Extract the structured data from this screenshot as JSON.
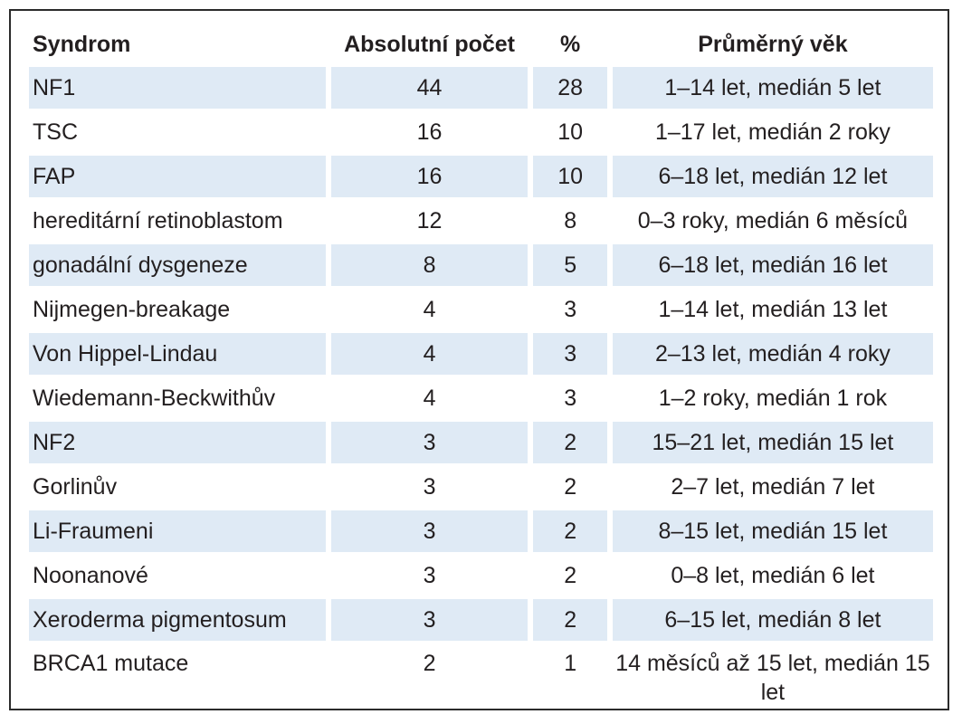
{
  "table": {
    "headers": [
      "Syndrom",
      "Absolutní počet",
      "%",
      "Průměrný věk"
    ],
    "rows": [
      [
        "NF1",
        "44",
        "28",
        "1–14 let, medián 5 let"
      ],
      [
        "TSC",
        "16",
        "10",
        "1–17 let, medián 2 roky"
      ],
      [
        "FAP",
        "16",
        "10",
        "6–18 let, medián 12 let"
      ],
      [
        "hereditární retinoblastom",
        "12",
        "8",
        "0–3 roky, medián 6 měsíců"
      ],
      [
        "gonadální dysgeneze",
        "8",
        "5",
        "6–18 let, medián 16 let"
      ],
      [
        "Nijmegen-breakage",
        "4",
        "3",
        "1–14 let, medián 13 let"
      ],
      [
        "Von Hippel-Lindau",
        "4",
        "3",
        "2–13 let, medián 4 roky"
      ],
      [
        "Wiedemann-Beckwithův",
        "4",
        "3",
        "1–2 roky, medián 1 rok"
      ],
      [
        "NF2",
        "3",
        "2",
        "15–21 let, medián 15 let"
      ],
      [
        "Gorlinův",
        "3",
        "2",
        "2–7 let, medián 7 let"
      ],
      [
        "Li-Fraumeni",
        "3",
        "2",
        "8–15 let, medián 15 let"
      ],
      [
        "Noonanové",
        "3",
        "2",
        "0–8 let, medián 6 let"
      ],
      [
        "Xeroderma pigmentosum",
        "3",
        "2",
        "6–15 let, medián 8 let"
      ],
      [
        "BRCA1 mutace",
        "2",
        "1",
        "14 měsíců až 15 let, medián 15 let"
      ]
    ]
  },
  "colors": {
    "shade": "#dfeaf5",
    "border": "#2b2b2b"
  }
}
